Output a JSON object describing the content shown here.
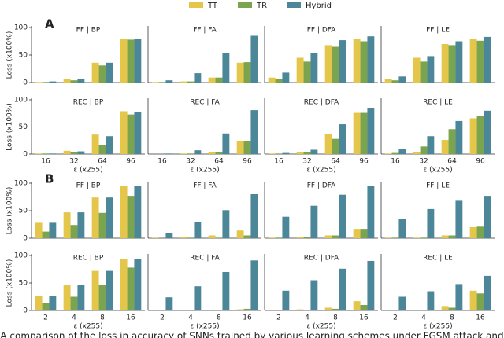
{
  "figure": {
    "labels": [
      "A",
      "B"
    ],
    "legend": [
      {
        "name": "TT",
        "color": "#e3c64a"
      },
      {
        "name": "TR",
        "color": "#7aa54e"
      },
      {
        "name": "Hybrid",
        "color": "#4b8799"
      }
    ],
    "caption": "A comparison of the loss in accuracy of SNNs trained by various learning schemes under FGSM attack and"
  },
  "chart_data": [
    {
      "type": "bar",
      "title": "FF | BP",
      "categories": [
        null,
        null,
        null,
        null
      ],
      "ylim": [
        0,
        100
      ],
      "yticks": [
        0,
        50,
        100
      ],
      "y_label": "Loss (x100%)",
      "series": [
        {
          "color": "#e3c64a",
          "values": [
            1,
            6,
            36,
            79
          ]
        },
        {
          "color": "#7aa54e",
          "values": [
            1,
            4,
            31,
            78
          ]
        },
        {
          "color": "#4b8799",
          "values": [
            2,
            6,
            36,
            79
          ]
        }
      ]
    },
    {
      "type": "bar",
      "title": "FF | FA",
      "categories": [
        null,
        null,
        null,
        null
      ],
      "ylim": [
        0,
        100
      ],
      "series": [
        {
          "color": "#e3c64a",
          "values": [
            1,
            2,
            9,
            36
          ]
        },
        {
          "color": "#7aa54e",
          "values": [
            1,
            2,
            9,
            37
          ]
        },
        {
          "color": "#4b8799",
          "values": [
            4,
            17,
            54,
            85
          ]
        }
      ]
    },
    {
      "type": "bar",
      "title": "FF | DFA",
      "categories": [
        null,
        null,
        null,
        null
      ],
      "ylim": [
        0,
        100
      ],
      "series": [
        {
          "color": "#e3c64a",
          "values": [
            9,
            45,
            68,
            79
          ]
        },
        {
          "color": "#7aa54e",
          "values": [
            6,
            38,
            65,
            75
          ]
        },
        {
          "color": "#4b8799",
          "values": [
            18,
            53,
            77,
            84
          ]
        }
      ]
    },
    {
      "type": "bar",
      "title": "FF | LE",
      "categories": [
        null,
        null,
        null,
        null
      ],
      "ylim": [
        0,
        100
      ],
      "series": [
        {
          "color": "#e3c64a",
          "values": [
            7,
            45,
            70,
            79
          ]
        },
        {
          "color": "#7aa54e",
          "values": [
            4,
            38,
            68,
            76
          ]
        },
        {
          "color": "#4b8799",
          "values": [
            11,
            48,
            75,
            83
          ]
        }
      ]
    },
    {
      "type": "bar",
      "title": "REC | BP",
      "categories": [
        "16",
        "32",
        "64",
        "96"
      ],
      "x_label": "ε (x255)",
      "ylim": [
        0,
        100
      ],
      "yticks": [
        0,
        50,
        100
      ],
      "y_label": "Loss (x100%)",
      "series": [
        {
          "color": "#e3c64a",
          "values": [
            1,
            6,
            36,
            79
          ]
        },
        {
          "color": "#7aa54e",
          "values": [
            1,
            3,
            17,
            73
          ]
        },
        {
          "color": "#4b8799",
          "values": [
            1,
            5,
            33,
            78
          ]
        }
      ]
    },
    {
      "type": "bar",
      "title": "REC | FA",
      "categories": [
        "16",
        "32",
        "64",
        "96"
      ],
      "x_label": "ε (x255)",
      "ylim": [
        0,
        100
      ],
      "series": [
        {
          "color": "#e3c64a",
          "values": [
            0,
            1,
            3,
            24
          ]
        },
        {
          "color": "#7aa54e",
          "values": [
            0,
            1,
            3,
            24
          ]
        },
        {
          "color": "#4b8799",
          "values": [
            1,
            7,
            38,
            81
          ]
        }
      ]
    },
    {
      "type": "bar",
      "title": "REC | DFA",
      "categories": [
        "16",
        "32",
        "64",
        "96"
      ],
      "x_label": "ε (x255)",
      "ylim": [
        0,
        100
      ],
      "series": [
        {
          "color": "#e3c64a",
          "values": [
            1,
            3,
            37,
            76
          ]
        },
        {
          "color": "#7aa54e",
          "values": [
            1,
            3,
            28,
            76
          ]
        },
        {
          "color": "#4b8799",
          "values": [
            2,
            8,
            55,
            85
          ]
        }
      ]
    },
    {
      "type": "bar",
      "title": "REC | LE",
      "categories": [
        "16",
        "32",
        "64",
        "96"
      ],
      "x_label": "ε (x255)",
      "ylim": [
        0,
        100
      ],
      "series": [
        {
          "color": "#e3c64a",
          "values": [
            1,
            4,
            26,
            66
          ]
        },
        {
          "color": "#7aa54e",
          "values": [
            2,
            14,
            46,
            70
          ]
        },
        {
          "color": "#4b8799",
          "values": [
            9,
            33,
            61,
            80
          ]
        }
      ]
    },
    {
      "type": "bar",
      "title": "FF | BP",
      "categories": [
        null,
        null,
        null,
        null
      ],
      "ylim": [
        0,
        100
      ],
      "yticks": [
        0,
        50,
        100
      ],
      "y_label": "Loss (x100%)",
      "series": [
        {
          "color": "#e3c64a",
          "values": [
            28,
            47,
            74,
            95
          ]
        },
        {
          "color": "#7aa54e",
          "values": [
            12,
            24,
            46,
            77
          ]
        },
        {
          "color": "#4b8799",
          "values": [
            28,
            47,
            74,
            95
          ]
        }
      ]
    },
    {
      "type": "bar",
      "title": "FF | FA",
      "categories": [
        null,
        null,
        null,
        null
      ],
      "ylim": [
        0,
        100
      ],
      "series": [
        {
          "color": "#e3c64a",
          "values": [
            1,
            2,
            5,
            14
          ]
        },
        {
          "color": "#7aa54e",
          "values": [
            0,
            1,
            1,
            5
          ]
        },
        {
          "color": "#4b8799",
          "values": [
            9,
            29,
            51,
            80
          ]
        }
      ]
    },
    {
      "type": "bar",
      "title": "FF | DFA",
      "categories": [
        null,
        null,
        null,
        null
      ],
      "ylim": [
        0,
        100
      ],
      "series": [
        {
          "color": "#e3c64a",
          "values": [
            1,
            2,
            5,
            17
          ]
        },
        {
          "color": "#7aa54e",
          "values": [
            1,
            2,
            5,
            17
          ]
        },
        {
          "color": "#4b8799",
          "values": [
            39,
            59,
            79,
            95
          ]
        }
      ]
    },
    {
      "type": "bar",
      "title": "FF | LE",
      "categories": [
        null,
        null,
        null,
        null
      ],
      "ylim": [
        0,
        100
      ],
      "series": [
        {
          "color": "#e3c64a",
          "values": [
            1,
            1,
            5,
            20
          ]
        },
        {
          "color": "#7aa54e",
          "values": [
            1,
            1,
            5,
            21
          ]
        },
        {
          "color": "#4b8799",
          "values": [
            35,
            53,
            68,
            77
          ]
        }
      ]
    },
    {
      "type": "bar",
      "title": "REC | BP",
      "categories": [
        "2",
        "4",
        "8",
        "16"
      ],
      "x_label": "ε (x255)",
      "ylim": [
        0,
        100
      ],
      "yticks": [
        0,
        50,
        100
      ],
      "y_label": "Loss (x100%)",
      "series": [
        {
          "color": "#e3c64a",
          "values": [
            27,
            47,
            72,
            93
          ]
        },
        {
          "color": "#7aa54e",
          "values": [
            13,
            25,
            47,
            78
          ]
        },
        {
          "color": "#4b8799",
          "values": [
            27,
            47,
            72,
            93
          ]
        }
      ]
    },
    {
      "type": "bar",
      "title": "REC | FA",
      "categories": [
        "2",
        "4",
        "8",
        "16"
      ],
      "x_label": "ε (x255)",
      "ylim": [
        0,
        100
      ],
      "series": [
        {
          "color": "#e3c64a",
          "values": [
            0,
            0,
            0,
            2
          ]
        },
        {
          "color": "#7aa54e",
          "values": [
            0,
            0,
            0,
            3
          ]
        },
        {
          "color": "#4b8799",
          "values": [
            24,
            44,
            70,
            91
          ]
        }
      ]
    },
    {
      "type": "bar",
      "title": "REC | DFA",
      "categories": [
        "2",
        "4",
        "8",
        "16"
      ],
      "x_label": "ε (x255)",
      "ylim": [
        0,
        100
      ],
      "series": [
        {
          "color": "#e3c64a",
          "values": [
            1,
            2,
            5,
            17
          ]
        },
        {
          "color": "#7aa54e",
          "values": [
            0,
            1,
            3,
            10
          ]
        },
        {
          "color": "#4b8799",
          "values": [
            36,
            55,
            76,
            90
          ]
        }
      ]
    },
    {
      "type": "bar",
      "title": "REC | LE",
      "categories": [
        "2",
        "4",
        "8",
        "16"
      ],
      "x_label": "ε (x255)",
      "ylim": [
        0,
        100
      ],
      "series": [
        {
          "color": "#e3c64a",
          "values": [
            1,
            1,
            8,
            36
          ]
        },
        {
          "color": "#7aa54e",
          "values": [
            0,
            1,
            5,
            31
          ]
        },
        {
          "color": "#4b8799",
          "values": [
            25,
            35,
            48,
            63
          ]
        }
      ]
    }
  ]
}
